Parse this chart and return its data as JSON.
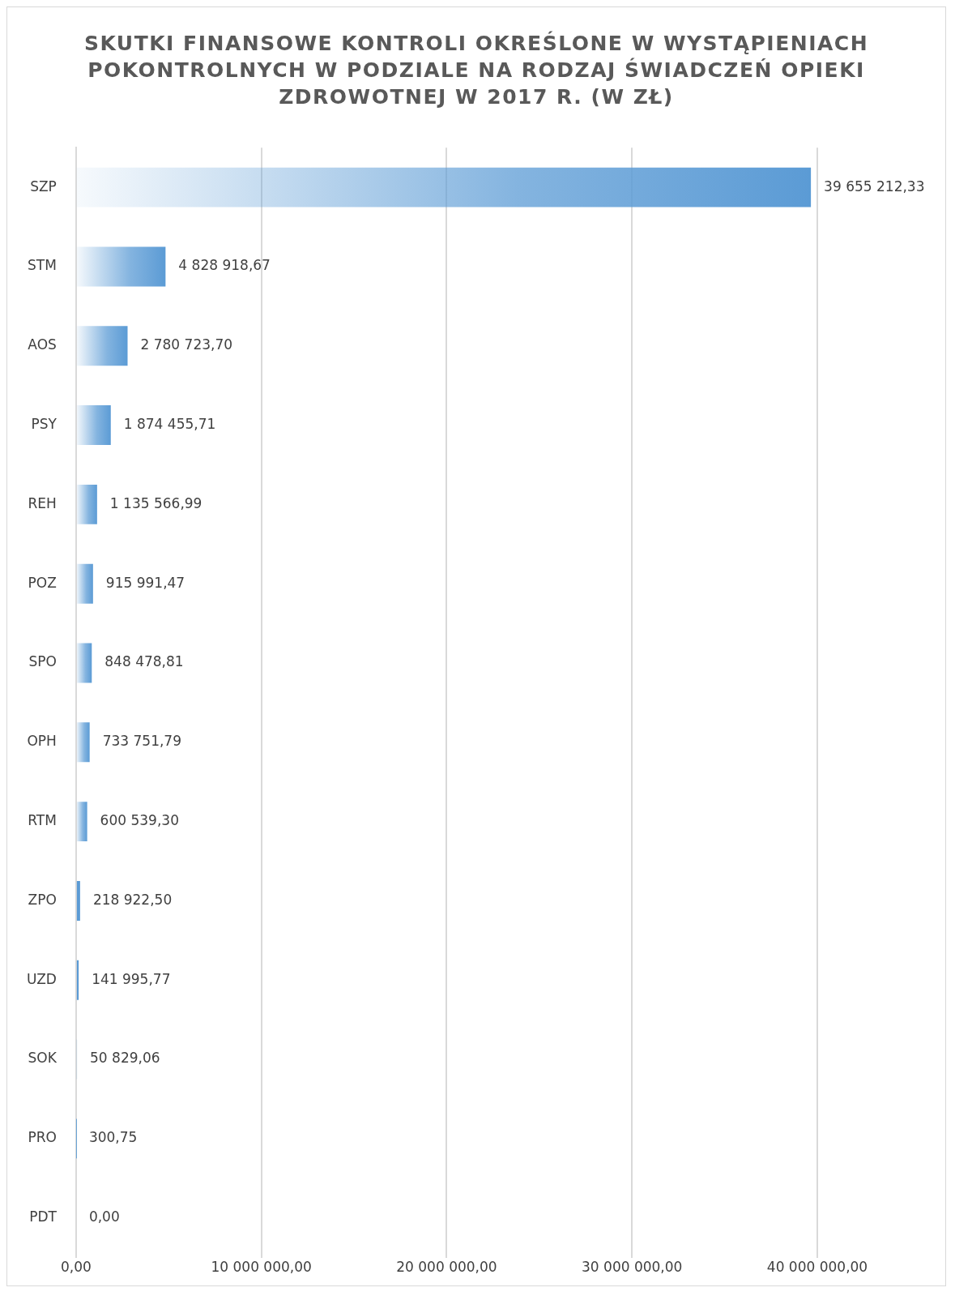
{
  "chart_data": {
    "type": "bar",
    "orientation": "horizontal",
    "title": "SKUTKI FINANSOWE KONTROLI OKREŚLONE W WYSTĄPIENIACH POKONTROLNYCH W PODZIALE NA RODZAJ ŚWIADCZEŃ OPIEKI ZDROWOTNEJ W 2017 R. (W ZŁ)",
    "categories": [
      "SZP",
      "STM",
      "AOS",
      "PSY",
      "REH",
      "POZ",
      "SPO",
      "OPH",
      "RTM",
      "ZPO",
      "UZD",
      "SOK",
      "PRO",
      "PDT"
    ],
    "values": [
      39655212.33,
      4828918.67,
      2780723.7,
      1874455.71,
      1135566.99,
      915991.47,
      848478.81,
      733751.79,
      600539.3,
      218922.5,
      141995.77,
      50829.06,
      300.75,
      0
    ],
    "value_labels": [
      "39 655 212,33",
      "4 828 918,67",
      "2 780 723,70",
      "1 874 455,71",
      "1 135 566,99",
      "915 991,47",
      "848 478,81",
      "733 751,79",
      "600 539,30",
      "218 922,50",
      "141 995,77",
      "50 829,06",
      "300,75",
      "0,00"
    ],
    "color": "#5b9bd5",
    "xlim": [
      0,
      40000000
    ],
    "xticks": [
      {
        "value": 0,
        "label": "0,00"
      },
      {
        "value": 10000000,
        "label": "10 000 000,00"
      },
      {
        "value": 20000000,
        "label": "20 000 000,00"
      },
      {
        "value": 30000000,
        "label": "30 000 000,00"
      },
      {
        "value": 40000000,
        "label": "40 000 000,00"
      }
    ],
    "grid": "x"
  }
}
